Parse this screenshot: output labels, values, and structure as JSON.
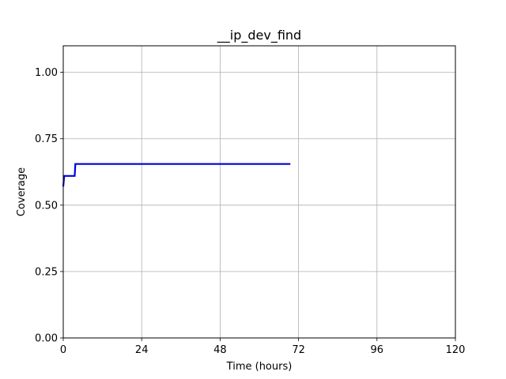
{
  "chart_data": {
    "type": "line",
    "title": "__ip_dev_find",
    "xlabel": "Time (hours)",
    "ylabel": "Coverage",
    "xlim": [
      0,
      120
    ],
    "ylim": [
      0,
      1.1
    ],
    "xticks": [
      0,
      24,
      48,
      72,
      96,
      120
    ],
    "yticks": [
      0.0,
      0.25,
      0.5,
      0.75,
      1.0
    ],
    "xtick_labels": [
      "0",
      "24",
      "48",
      "72",
      "96",
      "120"
    ],
    "ytick_labels": [
      "0.00",
      "0.25",
      "0.50",
      "0.75",
      "1.00"
    ],
    "grid": true,
    "series": [
      {
        "color": "#0000dd",
        "x": [
          0,
          0.3,
          3.5,
          3.7,
          69.5
        ],
        "y": [
          0.57,
          0.61,
          0.61,
          0.655,
          0.655
        ]
      }
    ]
  }
}
